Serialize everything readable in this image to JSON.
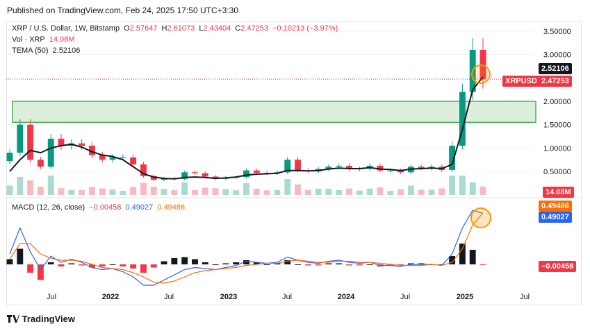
{
  "published": "Published on TradingView.com, Feb 24, 2025 17:50 UTC+3:30",
  "legend": {
    "symbol": "XRP / U.S. Dollar, 1W, Bitstamp",
    "ohlc": {
      "o_label": "O",
      "o": "2.57647",
      "h_label": "H",
      "h": "2.61073",
      "l_label": "L",
      "l": "2.43404",
      "c_label": "C",
      "c": "2.47253",
      "change": "−0.10213 (−3.97%)"
    },
    "vol_label": "Vol · XRP",
    "vol_value": "14.08M",
    "tema_label": "TEMA (50)",
    "tema_value": "2.52106"
  },
  "macd_legend": {
    "label": "MACD (12, 26, close)",
    "hist": "−0.00458",
    "macd": "0.49027",
    "signal": "0.49486"
  },
  "price_axis": {
    "ticks": [
      "3.50000",
      "3.00000",
      "2.50000",
      "2.00000",
      "1.50000",
      "1.00000",
      "0.50000"
    ],
    "tag_tema": "2.52106",
    "tag_symbol": "XRPUSD",
    "tag_price": "2.47253",
    "tag_volume": "14.08M"
  },
  "macd_axis": {
    "tag_signal": "0.49486",
    "tag_macd": "0.49027",
    "tag_hist": "−0.00458"
  },
  "time_axis": [
    "Jul",
    "2022",
    "Jul",
    "2023",
    "Jul",
    "2024",
    "Jul",
    "2025",
    "Jul"
  ],
  "brand": "TradingView",
  "colors": {
    "up": "#089981",
    "down": "#f23645",
    "tema": "#131722",
    "macd": "#2962ff",
    "signal": "#ff6d00",
    "zone": "#4caf50",
    "circle": "#ff9800"
  },
  "chart_data": {
    "type": "candlestick",
    "interval": "1W",
    "ylim": [
      0.1,
      3.75
    ],
    "support_zone": [
      1.55,
      2.0
    ],
    "last_close": 2.47253,
    "tema_last": 2.52106,
    "x": [
      "2021-04",
      "2021-05",
      "2021-06",
      "2021-07",
      "2021-08",
      "2021-09",
      "2021-10",
      "2021-11",
      "2021-12",
      "2022-01",
      "2022-02",
      "2022-03",
      "2022-04",
      "2022-05",
      "2022-06",
      "2022-07",
      "2022-08",
      "2022-09",
      "2022-10",
      "2022-11",
      "2022-12",
      "2023-01",
      "2023-02",
      "2023-03",
      "2023-04",
      "2023-05",
      "2023-06",
      "2023-07",
      "2023-08",
      "2023-09",
      "2023-10",
      "2023-11",
      "2023-12",
      "2024-01",
      "2024-02",
      "2024-03",
      "2024-04",
      "2024-05",
      "2024-06",
      "2024-07",
      "2024-08",
      "2024-09",
      "2024-10",
      "2024-11",
      "2024-12",
      "2025-01",
      "2025-02"
    ],
    "close": [
      0.9,
      1.5,
      0.75,
      0.6,
      1.2,
      1.05,
      1.1,
      1.05,
      0.85,
      0.75,
      0.8,
      0.8,
      0.65,
      0.4,
      0.32,
      0.35,
      0.34,
      0.48,
      0.46,
      0.39,
      0.34,
      0.37,
      0.38,
      0.52,
      0.47,
      0.46,
      0.48,
      0.75,
      0.52,
      0.5,
      0.55,
      0.6,
      0.62,
      0.55,
      0.56,
      0.62,
      0.52,
      0.52,
      0.48,
      0.6,
      0.57,
      0.6,
      0.53,
      1.05,
      2.2,
      3.1,
      2.47
    ],
    "tema": [
      0.5,
      0.75,
      0.95,
      0.9,
      1.0,
      1.05,
      1.08,
      1.02,
      0.92,
      0.85,
      0.82,
      0.75,
      0.6,
      0.45,
      0.38,
      0.35,
      0.34,
      0.37,
      0.38,
      0.37,
      0.35,
      0.36,
      0.38,
      0.42,
      0.44,
      0.45,
      0.46,
      0.52,
      0.52,
      0.51,
      0.52,
      0.55,
      0.57,
      0.56,
      0.56,
      0.58,
      0.55,
      0.54,
      0.52,
      0.55,
      0.56,
      0.57,
      0.56,
      0.65,
      1.4,
      2.25,
      2.52
    ],
    "macd": {
      "macd": [
        0.1,
        0.35,
        0.12,
        -0.05,
        0.08,
        0.02,
        0.05,
        0.02,
        -0.03,
        -0.05,
        -0.04,
        -0.07,
        -0.12,
        -0.2,
        -0.2,
        -0.15,
        -0.1,
        -0.05,
        -0.03,
        -0.04,
        -0.05,
        -0.03,
        -0.01,
        0.03,
        0.02,
        0.01,
        0.02,
        0.07,
        0.04,
        0.02,
        0.01,
        0.03,
        0.04,
        0.02,
        0.01,
        0.02,
        -0.01,
        -0.01,
        -0.02,
        0.0,
        0.0,
        0.0,
        -0.01,
        0.1,
        0.35,
        0.52,
        0.49027
      ],
      "signal": [
        0.05,
        0.2,
        0.2,
        0.1,
        0.06,
        0.04,
        0.04,
        0.03,
        0.0,
        -0.03,
        -0.04,
        -0.05,
        -0.08,
        -0.12,
        -0.17,
        -0.18,
        -0.16,
        -0.12,
        -0.08,
        -0.06,
        -0.05,
        -0.04,
        -0.03,
        -0.01,
        0.0,
        0.01,
        0.01,
        0.03,
        0.04,
        0.03,
        0.02,
        0.02,
        0.03,
        0.03,
        0.02,
        0.02,
        0.01,
        0.0,
        -0.01,
        -0.01,
        -0.01,
        0.0,
        -0.01,
        0.02,
        0.15,
        0.38,
        0.49486
      ],
      "hist_last": -0.00458
    }
  }
}
